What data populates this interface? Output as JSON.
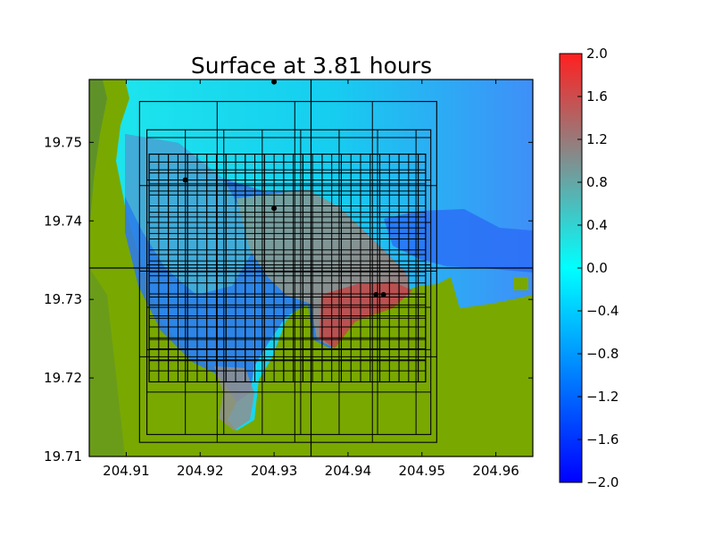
{
  "chart_data": {
    "type": "heatmap",
    "title": "Surface at 3.81 hours",
    "xlabel": "",
    "ylabel": "",
    "xlim": [
      204.905,
      204.965
    ],
    "ylim": [
      19.71,
      19.758
    ],
    "x_ticks": [
      {
        "value": 204.91,
        "label": "204.91"
      },
      {
        "value": 204.92,
        "label": "204.92"
      },
      {
        "value": 204.93,
        "label": "204.93"
      },
      {
        "value": 204.94,
        "label": "204.94"
      },
      {
        "value": 204.95,
        "label": "204.95"
      },
      {
        "value": 204.96,
        "label": "204.96"
      }
    ],
    "y_ticks": [
      {
        "value": 19.71,
        "label": "19.71"
      },
      {
        "value": 19.72,
        "label": "19.72"
      },
      {
        "value": 19.73,
        "label": "19.73"
      },
      {
        "value": 19.74,
        "label": "19.74"
      },
      {
        "value": 19.75,
        "label": "19.75"
      }
    ],
    "colorbar": {
      "range": [
        -2.0,
        2.0
      ],
      "colors": [
        "#0000ff",
        "#00ffff",
        "#ff0000"
      ],
      "ticks": [
        {
          "value": 2.0,
          "label": "2.0"
        },
        {
          "value": 1.6,
          "label": "1.6"
        },
        {
          "value": 1.2,
          "label": "1.2"
        },
        {
          "value": 0.8,
          "label": "0.8"
        },
        {
          "value": 0.4,
          "label": "0.4"
        },
        {
          "value": 0.0,
          "label": "0.0"
        },
        {
          "value": -0.4,
          "label": "−0.4"
        },
        {
          "value": -0.8,
          "label": "−0.8"
        },
        {
          "value": -1.2,
          "label": "−1.2"
        },
        {
          "value": -1.6,
          "label": "−1.6"
        },
        {
          "value": -2.0,
          "label": "−2.0"
        }
      ]
    },
    "colors": {
      "land": "#79a800",
      "land_dark": "#5e9229",
      "sea_level": "#00ffff",
      "grid_lines": "#000000",
      "gauges": "#000000"
    },
    "gauges": [
      {
        "x": 204.93,
        "y": 19.7577
      },
      {
        "x": 204.918,
        "y": 19.7452
      },
      {
        "x": 204.93,
        "y": 19.7416
      },
      {
        "x": 204.9438,
        "y": 19.7306
      },
      {
        "x": 204.9448,
        "y": 19.7306
      }
    ],
    "grid_patches": [
      {
        "x": [
          204.9118,
          204.952
        ],
        "y": [
          19.7118,
          19.7552
        ],
        "dx": 0.0105,
        "dy": 0.0109
      },
      {
        "x": [
          204.9128,
          204.9512
        ],
        "y": [
          19.7128,
          19.7516
        ],
        "dx": 0.0052,
        "dy": 0.0054
      },
      {
        "x": [
          204.9131,
          204.9505
        ],
        "y": [
          19.7195,
          19.7485
        ],
        "dx": 0.0026,
        "dy": 0.0027
      },
      {
        "x": [
          204.9131,
          204.9505
        ],
        "y": [
          19.7195,
          19.7485
        ],
        "dx": 0.0013,
        "dy": 0.0014
      }
    ],
    "patch_boundaries": {
      "x": 204.935,
      "y": 19.734
    }
  }
}
